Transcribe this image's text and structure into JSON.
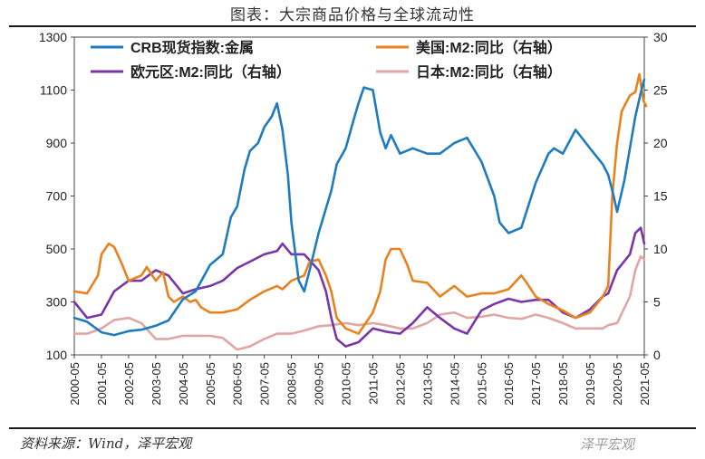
{
  "title": "图表：大宗商品价格与全球流动性",
  "source": "资料来源：Wind，泽平宏观",
  "watermark": "泽平宏观",
  "colors": {
    "crb": "#1f7bbf",
    "us": "#e8821e",
    "euro": "#7a35a8",
    "japan": "#e0a6a6"
  },
  "chart_data": {
    "type": "line",
    "x_ticks": [
      "2000-05",
      "2001-05",
      "2002-05",
      "2003-05",
      "2004-05",
      "2005-05",
      "2006-05",
      "2007-05",
      "2008-05",
      "2009-05",
      "2010-05",
      "2011-05",
      "2012-05",
      "2013-05",
      "2014-05",
      "2015-05",
      "2016-05",
      "2017-05",
      "2018-05",
      "2019-05",
      "2020-05",
      "2021-05"
    ],
    "y_left": {
      "min": 100,
      "max": 1300,
      "ticks": [
        100,
        300,
        500,
        700,
        900,
        1100,
        1300
      ]
    },
    "y_right": {
      "min": 0,
      "max": 30,
      "ticks": [
        0,
        5,
        10,
        15,
        20,
        25,
        30
      ]
    },
    "legend": [
      "CRB现货指数:金属",
      "美国:M2:同比（右轴）",
      "欧元区:M2:同比（右轴）",
      "日本:M2:同比（右轴）"
    ],
    "series": [
      {
        "name": "CRB现货指数:金属",
        "axis": "left",
        "x": [
          2000.33,
          2000.8,
          2001.33,
          2001.8,
          2002.33,
          2002.8,
          2003.33,
          2003.8,
          2004.33,
          2004.8,
          2005.33,
          2005.8,
          2006.1,
          2006.33,
          2006.6,
          2006.8,
          2007.1,
          2007.33,
          2007.6,
          2007.8,
          2008.0,
          2008.2,
          2008.33,
          2008.6,
          2008.8,
          2009.0,
          2009.33,
          2009.8,
          2010.0,
          2010.33,
          2010.6,
          2010.8,
          2011.0,
          2011.33,
          2011.6,
          2011.8,
          2012.0,
          2012.33,
          2012.8,
          2013.33,
          2013.8,
          2014.33,
          2014.8,
          2015.33,
          2015.8,
          2016.0,
          2016.33,
          2016.8,
          2017.33,
          2017.8,
          2018.0,
          2018.33,
          2018.8,
          2019.33,
          2019.8,
          2020.0,
          2020.2,
          2020.33,
          2020.6,
          2020.8,
          2021.0,
          2021.2,
          2021.33
        ],
        "values": [
          240,
          225,
          185,
          175,
          190,
          195,
          210,
          230,
          310,
          340,
          440,
          480,
          620,
          660,
          800,
          870,
          900,
          960,
          1000,
          1050,
          950,
          780,
          600,
          380,
          340,
          420,
          560,
          720,
          820,
          880,
          980,
          1050,
          1110,
          1100,
          940,
          880,
          930,
          860,
          880,
          860,
          860,
          900,
          920,
          830,
          700,
          600,
          560,
          580,
          750,
          860,
          880,
          860,
          950,
          880,
          820,
          780,
          700,
          640,
          760,
          880,
          1000,
          1090,
          1140
        ]
      },
      {
        "name": "美国:M2:同比（右轴）",
        "axis": "right",
        "x": [
          2000.33,
          2000.8,
          2001.2,
          2001.33,
          2001.6,
          2001.8,
          2002.1,
          2002.33,
          2002.8,
          2003.0,
          2003.33,
          2003.6,
          2003.8,
          2004.0,
          2004.33,
          2004.6,
          2004.8,
          2005.0,
          2005.33,
          2005.8,
          2006.33,
          2006.8,
          2007.33,
          2007.8,
          2008.0,
          2008.33,
          2008.8,
          2009.0,
          2009.33,
          2009.6,
          2009.8,
          2010.0,
          2010.33,
          2010.8,
          2011.33,
          2011.6,
          2011.8,
          2012.0,
          2012.33,
          2012.6,
          2012.8,
          2013.33,
          2013.8,
          2014.33,
          2014.8,
          2015.33,
          2015.8,
          2016.33,
          2016.8,
          2017.0,
          2017.33,
          2017.8,
          2018.33,
          2018.8,
          2019.33,
          2019.8,
          2020.0,
          2020.15,
          2020.33,
          2020.5,
          2020.8,
          2021.0,
          2021.15,
          2021.3,
          2021.4
        ],
        "values": [
          6.0,
          5.8,
          7.5,
          9.5,
          10.5,
          10.2,
          8.5,
          7.0,
          7.5,
          8.3,
          7.0,
          7.8,
          5.5,
          5.0,
          5.5,
          5.0,
          5.2,
          4.5,
          4.0,
          4.0,
          4.3,
          5.2,
          6.0,
          6.5,
          6.2,
          7.0,
          7.5,
          8.8,
          9.0,
          7.5,
          6.0,
          3.5,
          2.5,
          2.0,
          4.0,
          6.0,
          9.0,
          10.0,
          10.0,
          8.5,
          7.0,
          6.8,
          5.5,
          6.5,
          5.5,
          5.8,
          5.8,
          6.2,
          7.5,
          6.8,
          5.5,
          4.8,
          4.2,
          3.5,
          4.0,
          5.5,
          6.5,
          15.0,
          20.0,
          23.0,
          24.5,
          24.8,
          26.5,
          24.0,
          23.5
        ]
      },
      {
        "name": "欧元区:M2:同比（右轴）",
        "axis": "right",
        "x": [
          2000.33,
          2000.8,
          2001.33,
          2001.8,
          2002.33,
          2002.8,
          2003.33,
          2003.8,
          2004.33,
          2004.8,
          2005.33,
          2005.8,
          2006.33,
          2006.8,
          2007.33,
          2007.8,
          2008.0,
          2008.33,
          2008.8,
          2009.33,
          2009.6,
          2009.8,
          2010.0,
          2010.33,
          2010.8,
          2011.33,
          2011.8,
          2012.33,
          2012.8,
          2013.33,
          2013.8,
          2014.33,
          2014.8,
          2015.33,
          2015.8,
          2016.33,
          2016.8,
          2017.33,
          2017.8,
          2018.33,
          2018.8,
          2019.33,
          2019.8,
          2020.0,
          2020.33,
          2020.8,
          2021.0,
          2021.2,
          2021.33
        ],
        "values": [
          5.0,
          3.5,
          3.8,
          6.0,
          7.0,
          7.0,
          8.0,
          7.5,
          5.8,
          6.2,
          6.5,
          7.0,
          8.2,
          8.8,
          9.5,
          9.8,
          10.5,
          9.5,
          9.5,
          8.0,
          6.0,
          3.5,
          1.5,
          0.8,
          1.2,
          2.5,
          2.2,
          2.0,
          3.0,
          4.5,
          3.5,
          2.5,
          2.0,
          4.2,
          4.8,
          5.3,
          5.0,
          5.2,
          5.2,
          4.0,
          3.5,
          4.3,
          5.5,
          5.8,
          8.0,
          9.5,
          11.5,
          12.0,
          10.5
        ]
      },
      {
        "name": "日本:M2:同比（右轴）",
        "axis": "right",
        "x": [
          2000.33,
          2000.8,
          2001.33,
          2001.8,
          2002.33,
          2002.8,
          2003.33,
          2003.8,
          2004.33,
          2004.8,
          2005.33,
          2005.8,
          2006.33,
          2006.8,
          2007.33,
          2007.8,
          2008.33,
          2008.8,
          2009.33,
          2009.8,
          2010.33,
          2010.8,
          2011.33,
          2011.8,
          2012.33,
          2012.8,
          2013.33,
          2013.8,
          2014.33,
          2014.8,
          2015.33,
          2015.8,
          2016.33,
          2016.8,
          2017.33,
          2017.8,
          2018.33,
          2018.8,
          2019.33,
          2019.8,
          2020.0,
          2020.33,
          2020.8,
          2021.0,
          2021.2,
          2021.33
        ],
        "values": [
          2.0,
          2.0,
          2.5,
          3.3,
          3.5,
          3.0,
          1.5,
          1.5,
          1.8,
          1.8,
          1.8,
          1.6,
          0.5,
          0.8,
          1.5,
          2.0,
          2.0,
          2.3,
          2.7,
          2.8,
          3.0,
          2.8,
          3.0,
          2.8,
          2.5,
          2.5,
          3.0,
          3.8,
          4.0,
          3.5,
          3.6,
          3.8,
          3.5,
          3.4,
          3.8,
          3.5,
          3.0,
          2.5,
          2.5,
          2.5,
          2.8,
          3.0,
          5.5,
          8.0,
          9.3,
          9.0
        ]
      }
    ]
  }
}
